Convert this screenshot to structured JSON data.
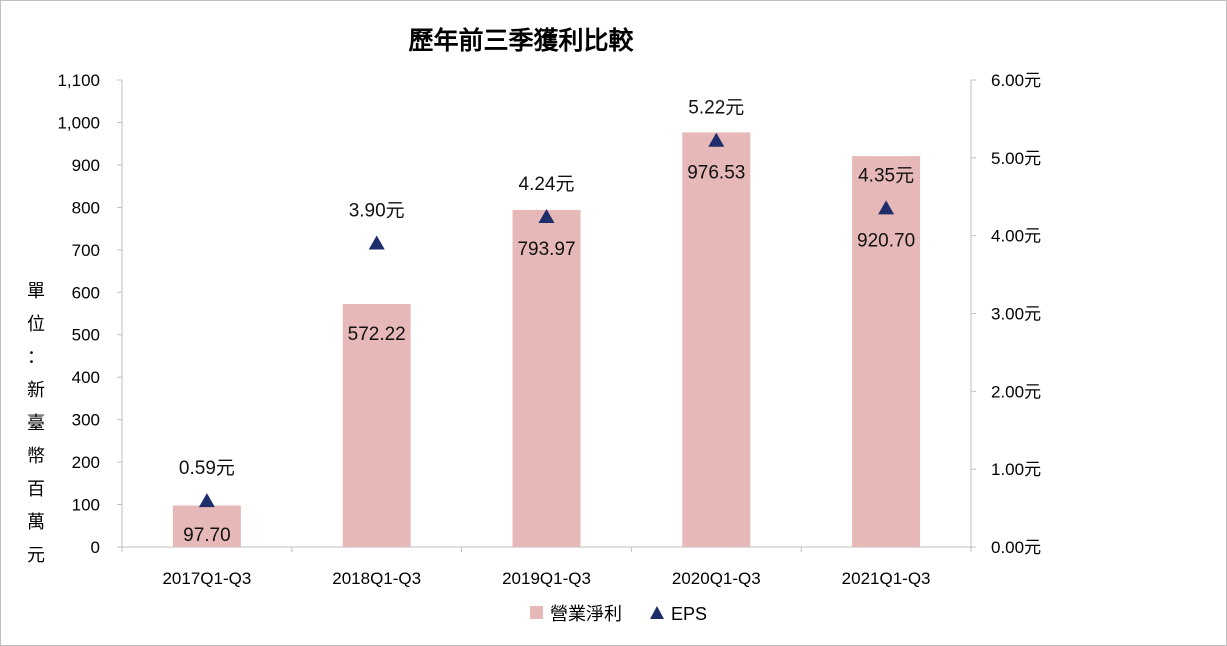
{
  "chart_data": {
    "type": "bar",
    "title": "歷年前三季獲利比較",
    "ylabel": "單位：新臺幣百萬元",
    "categories": [
      "2017Q1-Q3",
      "2018Q1-Q3",
      "2019Q1-Q3",
      "2020Q1-Q3",
      "2021Q1-Q3"
    ],
    "series": [
      {
        "name": "營業淨利",
        "type": "bar",
        "axis": "left",
        "color": "#e6b9b8",
        "values": [
          97.7,
          572.22,
          793.97,
          976.53,
          920.7
        ],
        "labels": [
          "97.70",
          "572.22",
          "793.97",
          "976.53",
          "920.70"
        ]
      },
      {
        "name": "EPS",
        "type": "scatter",
        "marker": "triangle",
        "axis": "right",
        "color": "#1f2d6b",
        "values": [
          0.59,
          3.9,
          4.24,
          5.22,
          4.35
        ],
        "labels": [
          "0.59元",
          "3.90元",
          "4.24元",
          "5.22元",
          "4.35元"
        ]
      }
    ],
    "ylim_left": [
      0,
      1100
    ],
    "yticks_left": [
      "0",
      "100",
      "200",
      "300",
      "400",
      "500",
      "600",
      "700",
      "800",
      "900",
      "1,000",
      "1,100"
    ],
    "ylim_right": [
      0,
      6
    ],
    "yticks_right": [
      "0.00元",
      "1.00元",
      "2.00元",
      "3.00元",
      "4.00元",
      "5.00元",
      "6.00元"
    ],
    "grid": false,
    "legend_position": "bottom"
  }
}
